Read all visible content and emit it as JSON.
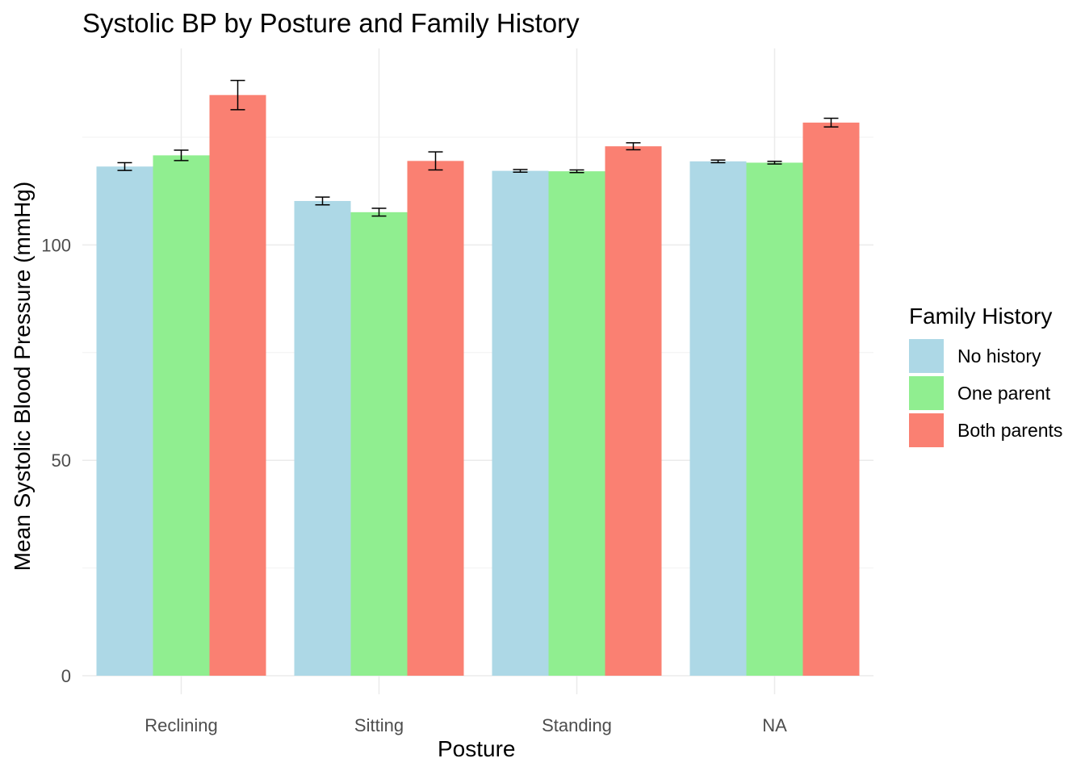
{
  "chart_data": {
    "type": "bar",
    "title": "Systolic BP by Posture and Family History",
    "xlabel": "Posture",
    "ylabel": "Mean Systolic Blood Pressure (mmHg)",
    "categories": [
      "Reclining",
      "Sitting",
      "Standing",
      "NA"
    ],
    "series": [
      {
        "name": "No history",
        "color": "#add8e6",
        "values": [
          118.2,
          110.2,
          117.2,
          119.4
        ],
        "error_low": [
          117.3,
          109.3,
          116.9,
          119.1
        ],
        "error_high": [
          119.1,
          111.1,
          117.5,
          119.7
        ]
      },
      {
        "name": "One parent",
        "color": "#90ee90",
        "values": [
          120.8,
          107.6,
          117.1,
          119.1
        ],
        "error_low": [
          119.6,
          106.7,
          116.8,
          118.8
        ],
        "error_high": [
          122.0,
          108.5,
          117.4,
          119.4
        ]
      },
      {
        "name": "Both parents",
        "color": "#fa8072",
        "values": [
          134.8,
          119.5,
          122.9,
          128.4
        ],
        "error_low": [
          131.4,
          117.4,
          122.1,
          127.4
        ],
        "error_high": [
          138.2,
          121.6,
          123.7,
          129.4
        ]
      }
    ],
    "ylim": [
      0,
      145
    ],
    "yticks": [
      0,
      50,
      100
    ],
    "grid": true,
    "legend": {
      "title": "Family History",
      "placement": "right"
    }
  }
}
